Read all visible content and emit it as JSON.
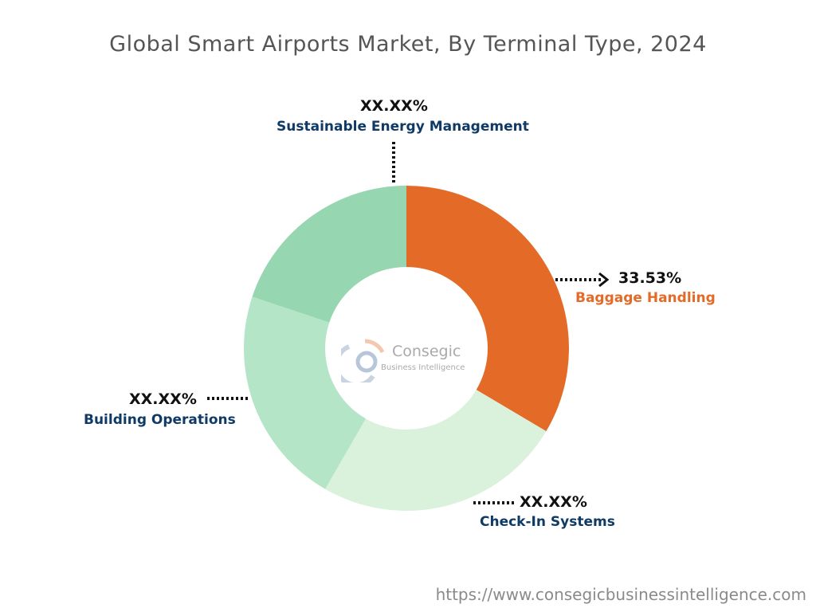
{
  "chart_data": {
    "type": "pie",
    "title": "Global Smart Airports Market, By Terminal Type, 2024",
    "donut": true,
    "categories": [
      "Baggage Handling",
      "Check-In Systems",
      "Building Operations",
      "Sustainable Energy Management"
    ],
    "values": [
      33.53,
      24.8,
      21.8,
      19.87
    ],
    "data_labels": [
      "33.53%",
      "XX.XX%",
      "XX.XX%",
      "XX.XX%"
    ],
    "colors": [
      "#E36A27",
      "#DAF1DC",
      "#B5E5C7",
      "#96D6B1"
    ],
    "label_colors": [
      "#E36A27",
      "#0F3A66",
      "#0F3A66",
      "#0F3A66"
    ]
  },
  "logo": {
    "name": "Consegic",
    "sub": "Business Intelligence"
  },
  "footer": {
    "url": "https://www.consegicbusinessintelligence.com"
  }
}
